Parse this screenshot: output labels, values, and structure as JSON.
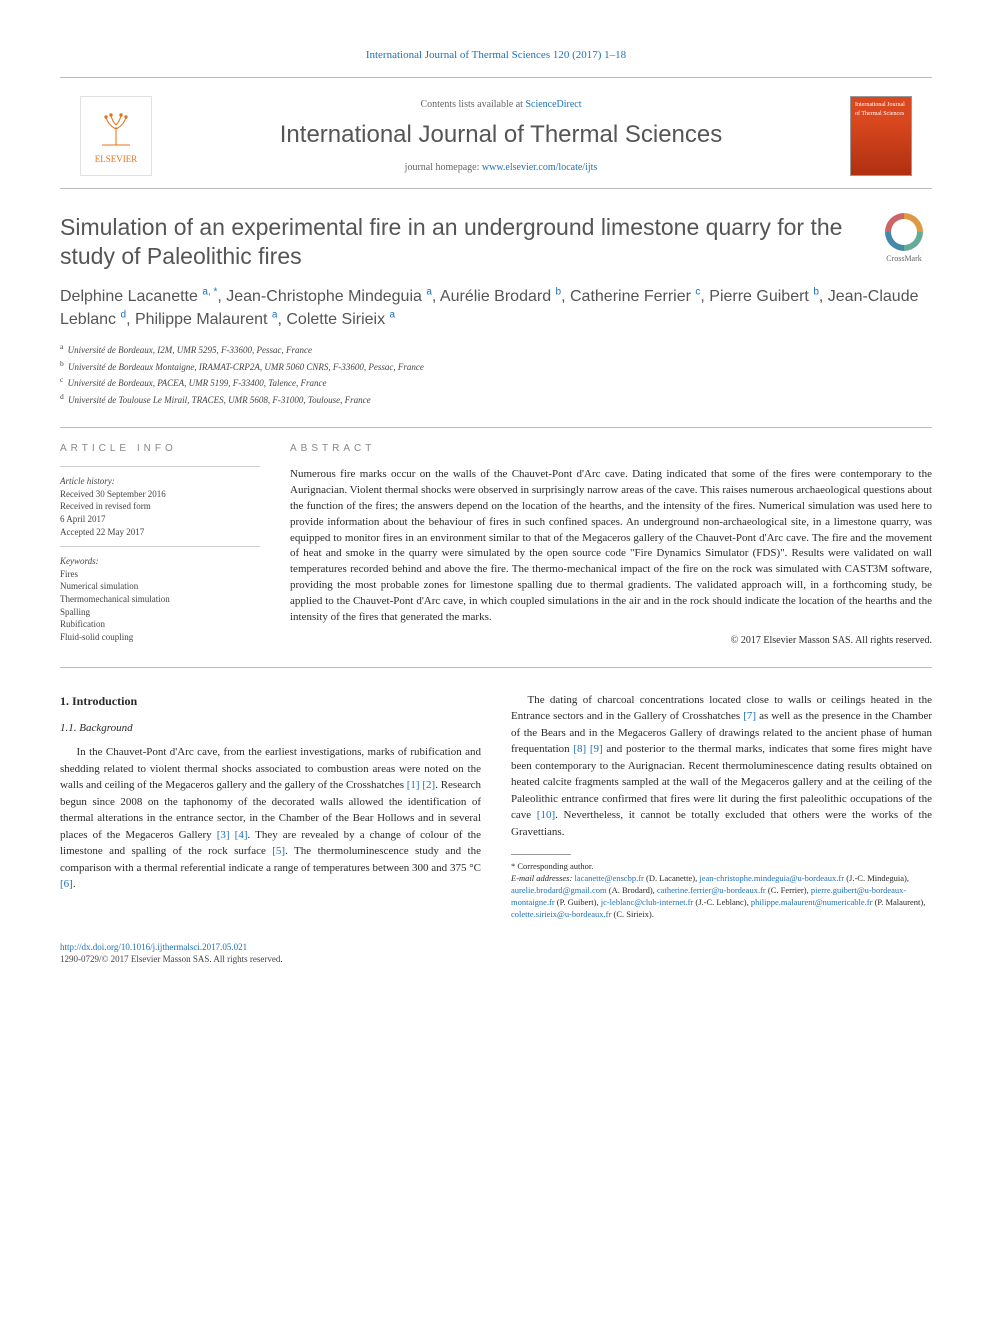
{
  "citation": "International Journal of Thermal Sciences 120 (2017) 1–18",
  "masthead": {
    "contents_prefix": "Contents lists available at ",
    "contents_link": "ScienceDirect",
    "journal": "International Journal of Thermal Sciences",
    "homepage_prefix": "journal homepage: ",
    "homepage_url": "www.elsevier.com/locate/ijts",
    "publisher_logo_label": "ELSEVIER",
    "cover_label": "International Journal of Thermal Sciences"
  },
  "crossmark_label": "CrossMark",
  "title": "Simulation of an experimental fire in an underground limestone quarry for the study of Paleolithic fires",
  "authors_html": "Delphine Lacanette <sup>a, *</sup>, Jean-Christophe Mindeguia <sup>a</sup>, Aurélie Brodard <sup>b</sup>, Catherine Ferrier <sup>c</sup>, Pierre Guibert <sup>b</sup>, Jean-Claude Leblanc <sup>d</sup>, Philippe Malaurent <sup>a</sup>, Colette Sirieix <sup>a</sup>",
  "affiliations": [
    {
      "key": "a",
      "text": "Université de Bordeaux, I2M, UMR 5295, F-33600, Pessac, France"
    },
    {
      "key": "b",
      "text": "Université de Bordeaux Montaigne, IRAMAT-CRP2A, UMR 5060 CNRS, F-33600, Pessac, France"
    },
    {
      "key": "c",
      "text": "Université de Bordeaux, PACEA, UMR 5199, F-33400, Talence, France"
    },
    {
      "key": "d",
      "text": "Université de Toulouse Le Mirail, TRACES, UMR 5608, F-31000, Toulouse, France"
    }
  ],
  "info": {
    "head": "ARTICLE INFO",
    "history_label": "Article history:",
    "received": "Received 30 September 2016",
    "revised1": "Received in revised form",
    "revised2": "6 April 2017",
    "accepted": "Accepted 22 May 2017",
    "keywords_label": "Keywords:",
    "keywords": [
      "Fires",
      "Numerical simulation",
      "Thermomechanical simulation",
      "Spalling",
      "Rubification",
      "Fluid-solid coupling"
    ]
  },
  "abstract": {
    "head": "ABSTRACT",
    "text": "Numerous fire marks occur on the walls of the Chauvet-Pont d'Arc cave. Dating indicated that some of the fires were contemporary to the Aurignacian. Violent thermal shocks were observed in surprisingly narrow areas of the cave. This raises numerous archaeological questions about the function of the fires; the answers depend on the location of the hearths, and the intensity of the fires. Numerical simulation was used here to provide information about the behaviour of fires in such confined spaces. An underground non-archaeological site, in a limestone quarry, was equipped to monitor fires in an environment similar to that of the Megaceros gallery of the Chauvet-Pont d'Arc cave. The fire and the movement of heat and smoke in the quarry were simulated by the open source code \"Fire Dynamics Simulator (FDS)\". Results were validated on wall temperatures recorded behind and above the fire. The thermo-mechanical impact of the fire on the rock was simulated with CAST3M software, providing the most probable zones for limestone spalling due to thermal gradients. The validated approach will, in a forthcoming study, be applied to the Chauvet-Pont d'Arc cave, in which coupled simulations in the air and in the rock should indicate the location of the hearths and the intensity of the fires that generated the marks.",
    "copyright": "© 2017 Elsevier Masson SAS. All rights reserved."
  },
  "body": {
    "h1": "1. Introduction",
    "h11": "1.1. Background",
    "p1a": "In the Chauvet-Pont d'Arc cave, from the earliest investigations, marks of rubification and shedding related to violent thermal shocks associated to combustion areas were noted on the walls and ceiling of the Megaceros gallery and the gallery of the Crosshatches ",
    "r1": "[1]",
    "r2": "[2]",
    "p1b": ". Research begun since 2008 on the taphonomy of the decorated walls allowed the identification of thermal alterations in ",
    "p2a": "the entrance sector, in the Chamber of the Bear Hollows and in several places of the Megaceros Gallery ",
    "r3": "[3]",
    "r4": "[4]",
    "p2b": ". They are revealed by a change of colour of the limestone and spalling of the rock surface ",
    "r5": "[5]",
    "p2c": ". The thermoluminescence study and the comparison with a thermal referential indicate a range of temperatures between 300 and 375 °C ",
    "r6": "[6]",
    "p2d": ".",
    "p3a": "The dating of charcoal concentrations located close to walls or ceilings heated in the Entrance sectors and in the Gallery of Crosshatches ",
    "r7": "[7]",
    "p3b": " as well as the presence in the Chamber of the Bears and in the Megaceros Gallery of drawings related to the ancient phase of human frequentation ",
    "r8": "[8]",
    "r9": "[9]",
    "p3c": " and posterior to the thermal marks, indicates that some fires might have been contemporary to the Aurignacian. Recent thermoluminescence dating results obtained on heated calcite fragments sampled at the wall of the Megaceros gallery and at the ceiling of the Paleolithic entrance confirmed that fires were lit during the first paleolithic occupations of the cave ",
    "r10": "[10]",
    "p3d": ". Nevertheless, it cannot be totally excluded that others were the works of the Gravettians."
  },
  "footnotes": {
    "corr": "* Corresponding author.",
    "label": "E-mail addresses:",
    "items": [
      {
        "email": "lacanette@enscbp.fr",
        "who": "(D. Lacanette)"
      },
      {
        "email": "jean-christophe.mindeguia@u-bordeaux.fr",
        "who": "(J.-C. Mindeguia)"
      },
      {
        "email": "aurelie.brodard@gmail.com",
        "who": "(A. Brodard)"
      },
      {
        "email": "catherine.ferrier@u-bordeaux.fr",
        "who": "(C. Ferrier)"
      },
      {
        "email": "pierre.guibert@u-bordeaux-montaigne.fr",
        "who": "(P. Guibert)"
      },
      {
        "email": "jc-leblanc@club-internet.fr",
        "who": "(J.-C. Leblanc)"
      },
      {
        "email": "philippe.malaurent@numericable.fr",
        "who": "(P. Malaurent)"
      },
      {
        "email": "colette.sirieix@u-bordeaux.fr",
        "who": "(C. Sirieix)"
      }
    ]
  },
  "footer": {
    "doi": "http://dx.doi.org/10.1016/j.ijthermalsci.2017.05.021",
    "issn_line": "1290-0729/© 2017 Elsevier Masson SAS. All rights reserved."
  },
  "colors": {
    "link": "#1e71b8",
    "accent": "#e9711c",
    "heading": "#555555",
    "rule": "#bbbbbb"
  }
}
